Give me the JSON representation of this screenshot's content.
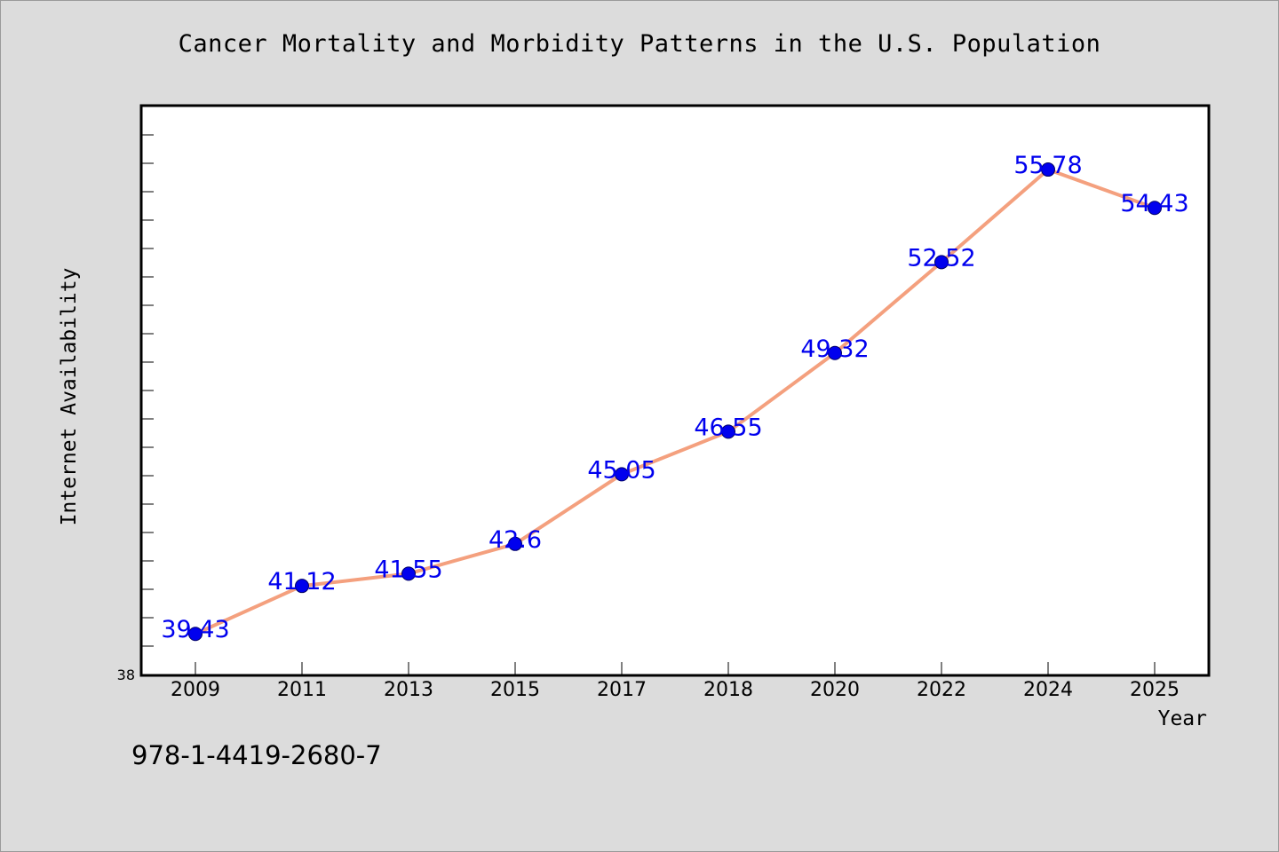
{
  "chart_data": {
    "type": "line",
    "title": "Cancer Mortality and Morbidity Patterns in the U.S. Population",
    "xlabel": "Year",
    "ylabel": "Internet Availability",
    "categories": [
      "2009",
      "2011",
      "2013",
      "2015",
      "2017",
      "2018",
      "2020",
      "2022",
      "2024",
      "2025"
    ],
    "series": [
      {
        "values": [
          39.43,
          41.12,
          41.55,
          42.6,
          45.05,
          46.55,
          49.32,
          52.52,
          55.78,
          54.43
        ],
        "data_labels": [
          "39.43",
          "41.12",
          "41.55",
          "42.6",
          "45.05",
          "46.55",
          "49.32",
          "52.52",
          "55.78",
          "54.43"
        ]
      }
    ],
    "y_tick_labels": [
      "38"
    ],
    "ylim": [
      38,
      58
    ],
    "grid": false,
    "line_color": "#f4a07e",
    "marker_color": "#0000ee",
    "label_color": "#0000ee"
  },
  "annotation": "978-1-4419-2680-7"
}
